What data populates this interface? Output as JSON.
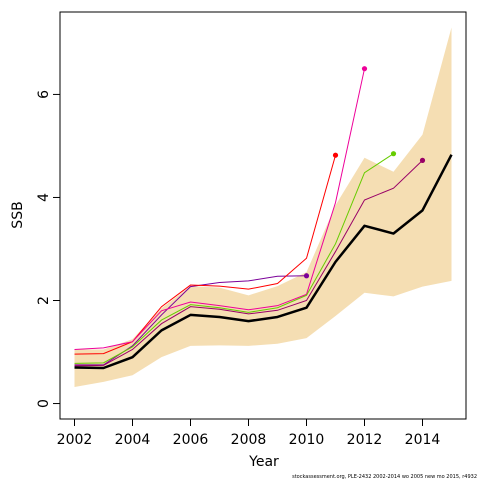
{
  "chart_data": {
    "type": "line",
    "xlabel": "Year",
    "ylabel": "SSB",
    "xlim": [
      2001.5,
      2015.5
    ],
    "ylim": [
      -0.3,
      7.6
    ],
    "x_ticks": [
      2002,
      2004,
      2006,
      2008,
      2010,
      2012,
      2014
    ],
    "y_ticks": [
      0,
      2,
      4,
      6
    ],
    "grid": false,
    "footnote": "stockassessment.org, PLE-2432  2002-2014  wo  2005  new  mo  2015, r4932",
    "confidence_band": {
      "color": "#f5deb3",
      "x": [
        2002,
        2003,
        2004,
        2005,
        2006,
        2007,
        2008,
        2009,
        2010,
        2011,
        2012,
        2013,
        2014,
        2015
      ],
      "lower": [
        0.32,
        0.42,
        0.55,
        0.9,
        1.12,
        1.13,
        1.12,
        1.16,
        1.27,
        1.7,
        2.15,
        2.08,
        2.27,
        2.38
      ],
      "upper": [
        1.05,
        1.05,
        1.25,
        1.85,
        2.28,
        2.25,
        2.1,
        2.28,
        2.55,
        3.85,
        4.77,
        4.5,
        5.22,
        7.3
      ]
    },
    "main_series": {
      "name": "",
      "color": "#000000",
      "x": [
        2002,
        2003,
        2004,
        2005,
        2006,
        2007,
        2008,
        2009,
        2010,
        2011,
        2012,
        2013,
        2014,
        2015
      ],
      "values": [
        0.7,
        0.69,
        0.9,
        1.42,
        1.72,
        1.68,
        1.6,
        1.68,
        1.86,
        2.75,
        3.45,
        3.3,
        3.75,
        4.83
      ]
    },
    "series": [
      {
        "name": "",
        "color": "#7b0099",
        "x": [
          2002,
          2003,
          2004,
          2005,
          2006,
          2007,
          2008,
          2009,
          2010
        ],
        "values": [
          0.75,
          0.75,
          1.12,
          1.72,
          2.27,
          2.35,
          2.38,
          2.47,
          2.48
        ]
      },
      {
        "name": "",
        "color": "#ff0000",
        "x": [
          2002,
          2003,
          2004,
          2005,
          2006,
          2007,
          2008,
          2009,
          2010,
          2011
        ],
        "values": [
          0.96,
          0.97,
          1.2,
          1.88,
          2.3,
          2.28,
          2.22,
          2.33,
          2.82,
          4.82
        ]
      },
      {
        "name": "",
        "color": "#ee0099",
        "x": [
          2002,
          2003,
          2004,
          2005,
          2006,
          2007,
          2008,
          2009,
          2010,
          2011,
          2012
        ],
        "values": [
          1.05,
          1.08,
          1.2,
          1.8,
          1.97,
          1.9,
          1.82,
          1.9,
          2.12,
          3.9,
          6.5
        ]
      },
      {
        "name": "",
        "color": "#66cc00",
        "x": [
          2002,
          2003,
          2004,
          2005,
          2006,
          2007,
          2008,
          2009,
          2010,
          2011,
          2012,
          2013
        ],
        "values": [
          0.78,
          0.79,
          1.1,
          1.62,
          1.92,
          1.86,
          1.77,
          1.86,
          2.1,
          3.1,
          4.48,
          4.85
        ]
      },
      {
        "name": "",
        "color": "#990066",
        "x": [
          2002,
          2003,
          2004,
          2005,
          2006,
          2007,
          2008,
          2009,
          2010,
          2011,
          2012,
          2013,
          2014
        ],
        "values": [
          0.73,
          0.74,
          1.05,
          1.55,
          1.88,
          1.83,
          1.74,
          1.81,
          2.0,
          2.95,
          3.95,
          4.18,
          4.72
        ]
      }
    ]
  }
}
